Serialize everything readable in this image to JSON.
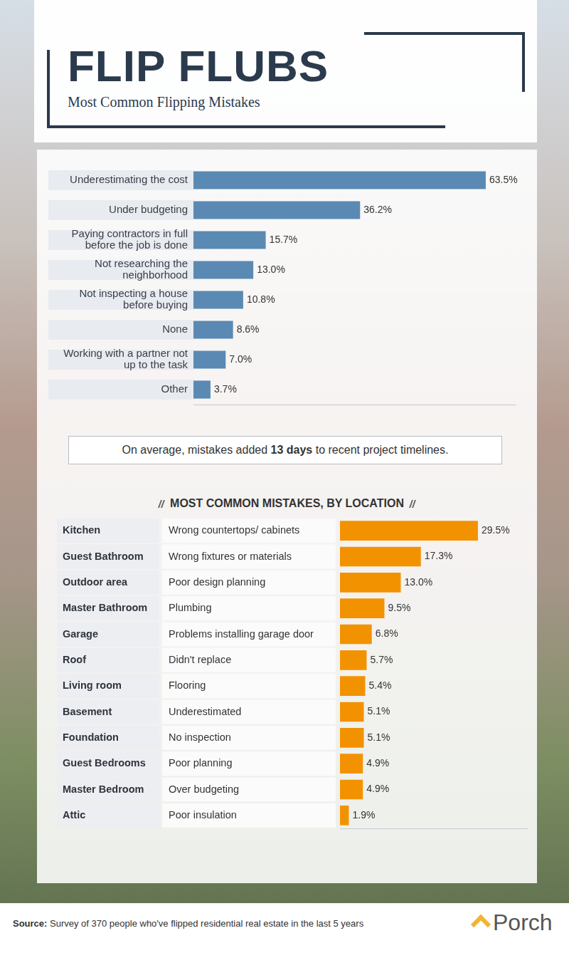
{
  "header": {
    "title": "FLIP FLUBS",
    "subtitle": "Most Common Flipping Mistakes"
  },
  "chart_data": [
    {
      "type": "bar",
      "orientation": "horizontal",
      "categories": [
        "Underestimating the cost",
        "Under budgeting",
        "Paying contractors in full before the job is done",
        "Not researching the neighborhood",
        "Not inspecting a house before buying",
        "None",
        "Working with a partner not up to the task",
        "Other"
      ],
      "values": [
        63.5,
        36.2,
        15.7,
        13.0,
        10.8,
        8.6,
        7.0,
        3.7
      ],
      "value_labels": [
        "63.5%",
        "36.2%",
        "15.7%",
        "13.0%",
        "10.8%",
        "8.6%",
        "7.0%",
        "3.7%"
      ],
      "color": "#5a8ab3",
      "xlim": [
        0,
        70
      ],
      "grid": false,
      "data_labels": true,
      "tick_labels": "y"
    },
    {
      "type": "bar",
      "orientation": "horizontal",
      "title": "MOST COMMON MISTAKES, BY LOCATION",
      "categories": [
        "Kitchen",
        "Guest Bathroom",
        "Outdoor area",
        "Master Bathroom",
        "Garage",
        "Roof",
        "Living room",
        "Basement",
        "Foundation",
        "Guest Bedrooms",
        "Master Bedroom",
        "Attic"
      ],
      "descriptions": [
        "Wrong countertops/ cabinets",
        "Wrong fixtures or materials",
        "Poor design planning",
        "Plumbing",
        "Problems installing garage door",
        "Didn't replace",
        "Flooring",
        "Underestimated",
        "No inspection",
        "Poor planning",
        "Over budgeting",
        "Poor insulation"
      ],
      "values": [
        29.5,
        17.3,
        13.0,
        9.5,
        6.8,
        5.7,
        5.4,
        5.1,
        5.1,
        4.9,
        4.9,
        1.9
      ],
      "value_labels": [
        "29.5%",
        "17.3%",
        "13.0%",
        "9.5%",
        "6.8%",
        "5.7%",
        "5.4%",
        "5.1%",
        "5.1%",
        "4.9%",
        "4.9%",
        "1.9%"
      ],
      "color": "#f39200",
      "xlim": [
        0,
        40
      ],
      "grid": false,
      "data_labels": true,
      "tick_labels": "y"
    }
  ],
  "note": {
    "text": "On average, mistakes added 13 days to recent project timelines.",
    "emphasis": "13 days"
  },
  "source": {
    "label": "Source:",
    "text": "Survey of 370 people who've flipped residential real estate in the last 5 years"
  },
  "logo": "Porch"
}
